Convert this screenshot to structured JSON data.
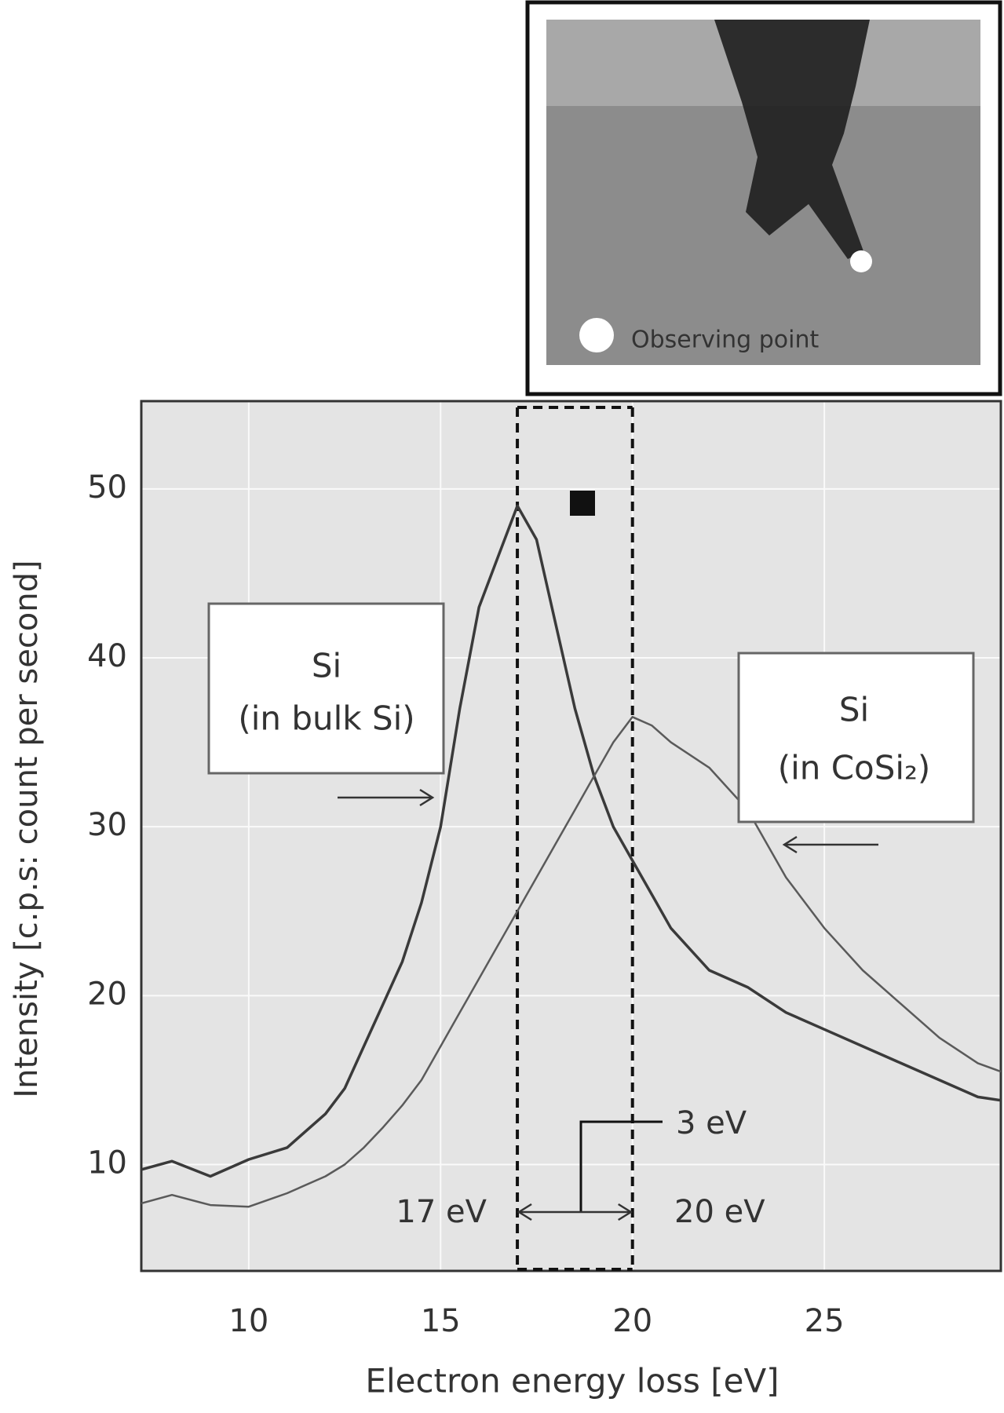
{
  "chart_data": {
    "type": "line",
    "xlabel": "Electron energy loss [eV]",
    "ylabel": "Intensity [c.p.s:  count per second]",
    "xlim": [
      7.2,
      29.6
    ],
    "ylim": [
      3.7,
      55.2
    ],
    "xticks": [
      10,
      15,
      20,
      25
    ],
    "yticks": [
      10,
      20,
      30,
      40,
      50
    ],
    "grid": true,
    "x": [
      7.2,
      8,
      9,
      10,
      11,
      12,
      12.5,
      13,
      13.5,
      14,
      14.5,
      15,
      15.5,
      16,
      16.5,
      17,
      17.5,
      18,
      18.5,
      19,
      19.5,
      20,
      20.5,
      21,
      22,
      23,
      24,
      25,
      26,
      27,
      28,
      29,
      29.6
    ],
    "series": [
      {
        "name": "Si (in bulk Si)",
        "color": "#3a3a3a",
        "values": [
          9.7,
          10.2,
          9.3,
          10.3,
          11,
          13,
          14.5,
          17,
          19.5,
          22,
          25.5,
          30,
          37,
          43,
          46,
          49,
          47,
          42,
          37,
          33,
          30,
          28,
          26,
          24,
          21.5,
          20.5,
          19,
          18,
          17,
          16,
          15,
          14,
          13.8
        ]
      },
      {
        "name": "Si (in CoSi₂)",
        "color": "#5a5a5a",
        "values": [
          7.7,
          8.2,
          7.6,
          7.5,
          8.3,
          9.3,
          10,
          11,
          12.2,
          13.5,
          15,
          17,
          19,
          21,
          23,
          25,
          27,
          29,
          31,
          33,
          35,
          36.5,
          36,
          35,
          33.5,
          31,
          27,
          24,
          21.5,
          19.5,
          17.5,
          16,
          15.5
        ]
      }
    ],
    "annotations": {
      "bulk_title": "Si",
      "bulk_sub": "(in bulk Si)",
      "cosi_title": "Si",
      "cosi_sub": "(in CoSi₂)",
      "left_edge": "17 eV",
      "right_edge": "20 eV",
      "width": "3 eV",
      "inset_label": "Observing point"
    },
    "vlines": [
      17,
      20
    ]
  }
}
